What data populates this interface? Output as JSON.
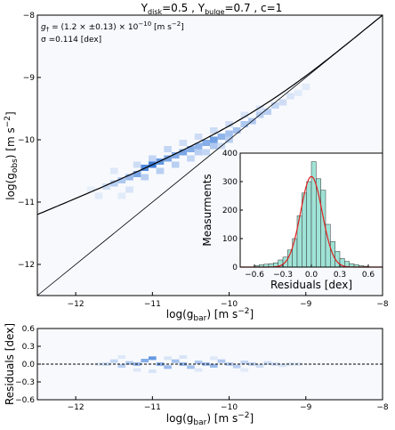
{
  "chart_data": [
    {
      "type": "heatmap",
      "title_parts": {
        "ydisk_label": "Y",
        "ydisk_sub": "disk",
        "ydisk_value": "=0.5 , ",
        "ybulge_label": "Y",
        "ybulge_sub": "bulge",
        "ybulge_value": "=0.7 , c=1"
      },
      "annotation_gt": {
        "prefix": "g",
        "sub": "†",
        "text": " = (1.2 × ±0.13) × 10",
        "exp": "−10",
        "unit": " [m s",
        "unit_exp": "−2",
        "close": "]"
      },
      "annotation_sigma": "σ =0.114 [dex]",
      "xlabel": {
        "pre": "log(g",
        "sub": "bar",
        "post": ") [m s",
        "sup": "−2",
        "close": "]"
      },
      "ylabel": {
        "pre": "log(g",
        "sub": "obs",
        "post": ") [m s",
        "sup": "−2",
        "close": "]"
      },
      "xlim": [
        -12.5,
        -8
      ],
      "ylim": [
        -12.5,
        -8
      ],
      "xticks": [
        "−12",
        "−11",
        "−10",
        "−9",
        "−8"
      ],
      "yticks": [
        "−12",
        "−11",
        "−10",
        "−9",
        "−8"
      ],
      "one_to_one_line": true,
      "fit_gdagger": 1.2e-10,
      "cells": [
        [
          -11.6,
          -10.75,
          0.2
        ],
        [
          -11.5,
          -10.7,
          0.3
        ],
        [
          -11.4,
          -10.65,
          0.35
        ],
        [
          -11.3,
          -10.6,
          0.45
        ],
        [
          -11.2,
          -10.55,
          0.6
        ],
        [
          -11.1,
          -10.45,
          0.8
        ],
        [
          -11.0,
          -10.4,
          0.9
        ],
        [
          -10.9,
          -10.35,
          0.7
        ],
        [
          -10.8,
          -10.3,
          0.6
        ],
        [
          -10.7,
          -10.25,
          0.55
        ],
        [
          -10.6,
          -10.2,
          0.6
        ],
        [
          -10.5,
          -10.15,
          0.55
        ],
        [
          -10.4,
          -10.1,
          0.5
        ],
        [
          -10.3,
          -10.05,
          0.55
        ],
        [
          -10.2,
          -10.0,
          0.65
        ],
        [
          -10.1,
          -9.95,
          0.5
        ],
        [
          -10.0,
          -9.9,
          0.4
        ],
        [
          -9.9,
          -9.85,
          0.4
        ],
        [
          -9.8,
          -9.75,
          0.35
        ],
        [
          -9.7,
          -9.7,
          0.35
        ],
        [
          -9.6,
          -9.6,
          0.3
        ],
        [
          -9.5,
          -9.55,
          0.3
        ],
        [
          -9.4,
          -9.45,
          0.25
        ],
        [
          -9.3,
          -9.4,
          0.2
        ],
        [
          -9.2,
          -9.3,
          0.15
        ],
        [
          -11.3,
          -10.8,
          0.15
        ],
        [
          -11.1,
          -10.6,
          0.3
        ],
        [
          -10.9,
          -10.5,
          0.3
        ],
        [
          -10.7,
          -10.4,
          0.3
        ],
        [
          -10.5,
          -10.3,
          0.25
        ],
        [
          -10.3,
          -10.2,
          0.25
        ],
        [
          -10.1,
          -10.1,
          0.2
        ],
        [
          -11.2,
          -10.4,
          0.2
        ],
        [
          -11.0,
          -10.3,
          0.25
        ],
        [
          -10.8,
          -10.15,
          0.25
        ],
        [
          -10.6,
          -10.05,
          0.2
        ],
        [
          -10.4,
          -9.95,
          0.2
        ],
        [
          -10.2,
          -9.85,
          0.2
        ],
        [
          -10.0,
          -9.75,
          0.2
        ],
        [
          -9.8,
          -9.6,
          0.15
        ],
        [
          -9.6,
          -9.5,
          0.15
        ],
        [
          -11.5,
          -10.5,
          0.12
        ],
        [
          -11.7,
          -10.9,
          0.1
        ],
        [
          -11.4,
          -10.9,
          0.1
        ],
        [
          -9.0,
          -9.15,
          0.1
        ],
        [
          -9.1,
          -9.25,
          0.1
        ],
        [
          -11.8,
          -10.8,
          0.08
        ],
        [
          -10.0,
          -10.0,
          0.3
        ],
        [
          -10.2,
          -10.1,
          0.35
        ],
        [
          -10.4,
          -10.2,
          0.3
        ]
      ]
    },
    {
      "type": "bar",
      "xlabel": "Residuals [dex]",
      "ylabel": "Measurments",
      "xlim": [
        -0.75,
        0.75
      ],
      "ylim": [
        0,
        400
      ],
      "xticks": [
        "−0.6",
        "−0.3",
        "0.0",
        "0.3",
        "0.6"
      ],
      "yticks": [
        "0",
        "100",
        "200",
        "300",
        "400"
      ],
      "bin_centers": [
        -0.575,
        -0.525,
        -0.475,
        -0.425,
        -0.375,
        -0.325,
        -0.275,
        -0.225,
        -0.175,
        -0.125,
        -0.075,
        -0.025,
        0.025,
        0.075,
        0.125,
        0.175,
        0.225,
        0.275,
        0.325,
        0.375,
        0.425,
        0.475,
        0.525,
        0.575
      ],
      "values": [
        5,
        8,
        10,
        12,
        15,
        25,
        35,
        60,
        100,
        180,
        260,
        300,
        370,
        310,
        270,
        150,
        90,
        55,
        30,
        20,
        12,
        8,
        5,
        3
      ],
      "gaussian_fit": {
        "mean": 0.0,
        "sigma": 0.114,
        "peak": 318
      }
    },
    {
      "type": "heatmap",
      "xlabel": {
        "pre": "log(g",
        "sub": "bar",
        "post": ") [m s",
        "sup": "−2",
        "close": "]"
      },
      "ylabel": "Residuals [dex]",
      "xlim": [
        -12.5,
        -8
      ],
      "ylim": [
        -0.6,
        0.6
      ],
      "xticks": [
        "−12",
        "−11",
        "−10",
        "−9",
        "−8"
      ],
      "yticks": [
        "0.6",
        "0.3",
        "0.0",
        "−0.3",
        "−0.6"
      ],
      "zero_line": true,
      "cells": [
        [
          -11.6,
          0.0,
          0.2
        ],
        [
          -11.5,
          0.05,
          0.25
        ],
        [
          -11.4,
          -0.03,
          0.3
        ],
        [
          -11.3,
          0.02,
          0.35
        ],
        [
          -11.2,
          0.0,
          0.45
        ],
        [
          -11.1,
          0.06,
          0.55
        ],
        [
          -11.0,
          0.1,
          0.7
        ],
        [
          -10.9,
          0.0,
          0.5
        ],
        [
          -10.8,
          -0.05,
          0.45
        ],
        [
          -10.7,
          0.05,
          0.4
        ],
        [
          -10.6,
          0.0,
          0.45
        ],
        [
          -10.5,
          -0.05,
          0.4
        ],
        [
          -10.4,
          0.03,
          0.35
        ],
        [
          -10.3,
          0.0,
          0.4
        ],
        [
          -10.2,
          -0.03,
          0.45
        ],
        [
          -10.1,
          0.05,
          0.35
        ],
        [
          -10.0,
          0.0,
          0.3
        ],
        [
          -9.9,
          -0.04,
          0.3
        ],
        [
          -9.8,
          0.03,
          0.25
        ],
        [
          -9.7,
          0.0,
          0.25
        ],
        [
          -9.6,
          -0.03,
          0.2
        ],
        [
          -9.5,
          0.02,
          0.2
        ],
        [
          -9.4,
          0.0,
          0.18
        ],
        [
          -9.3,
          -0.02,
          0.15
        ],
        [
          -9.2,
          0.0,
          0.12
        ],
        [
          -9.1,
          0.0,
          0.1
        ],
        [
          -11.4,
          0.12,
          0.12
        ],
        [
          -11.0,
          -0.12,
          0.15
        ],
        [
          -10.6,
          0.12,
          0.15
        ],
        [
          -10.2,
          0.1,
          0.12
        ],
        [
          -11.2,
          -0.1,
          0.12
        ],
        [
          -10.8,
          0.1,
          0.15
        ],
        [
          -10.4,
          -0.1,
          0.12
        ],
        [
          -9.8,
          -0.1,
          0.1
        ],
        [
          -11.7,
          0.0,
          0.1
        ]
      ]
    }
  ]
}
